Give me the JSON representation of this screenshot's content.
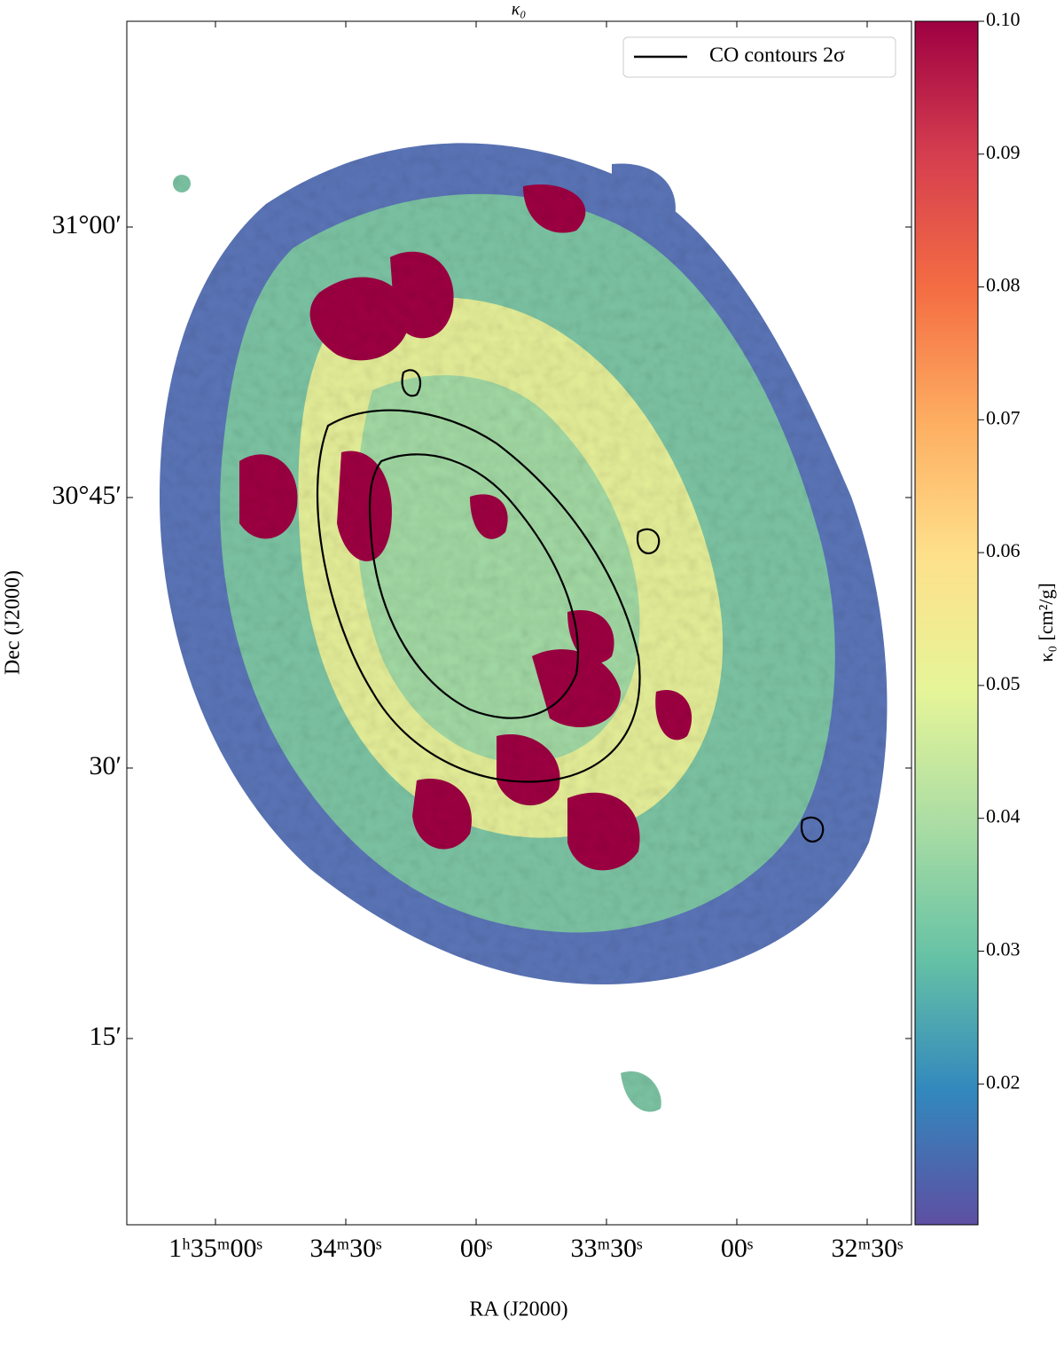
{
  "chart_data": {
    "type": "image",
    "title": "κ₀",
    "xlabel": "RA (J2000)",
    "ylabel": "Dec (J2000)",
    "xticks": [
      "1ʰ35ᵐ00ˢ",
      "34ᵐ30ˢ",
      "00ˢ",
      "33ᵐ30ˢ",
      "00ˢ",
      "32ᵐ30ˢ"
    ],
    "yticks": [
      "31°00′",
      "30°45′",
      "30′",
      "15′"
    ],
    "legend": {
      "label": "CO contours 2σ",
      "color": "#000000",
      "position": "upper right"
    },
    "colorbar": {
      "label": "κ₀ [cm²/g]",
      "clim": [
        0.0094,
        0.1
      ],
      "ticks": [
        {
          "value": 0.02,
          "label": "0.02"
        },
        {
          "value": 0.03,
          "label": "0.03"
        },
        {
          "value": 0.04,
          "label": "0.04"
        },
        {
          "value": 0.05,
          "label": "0.05"
        },
        {
          "value": 0.06,
          "label": "0.06"
        },
        {
          "value": 0.07,
          "label": "0.07"
        },
        {
          "value": 0.08,
          "label": "0.08"
        },
        {
          "value": 0.09,
          "label": "0.09"
        },
        {
          "value": 0.1,
          "label": "0.10"
        }
      ],
      "colormap": [
        "#5e4fa2",
        "#3288bd",
        "#66c2a5",
        "#abdda4",
        "#e6f598",
        "#fee08b",
        "#fdae61",
        "#f46d43",
        "#d53e4f",
        "#9e0142"
      ]
    }
  }
}
